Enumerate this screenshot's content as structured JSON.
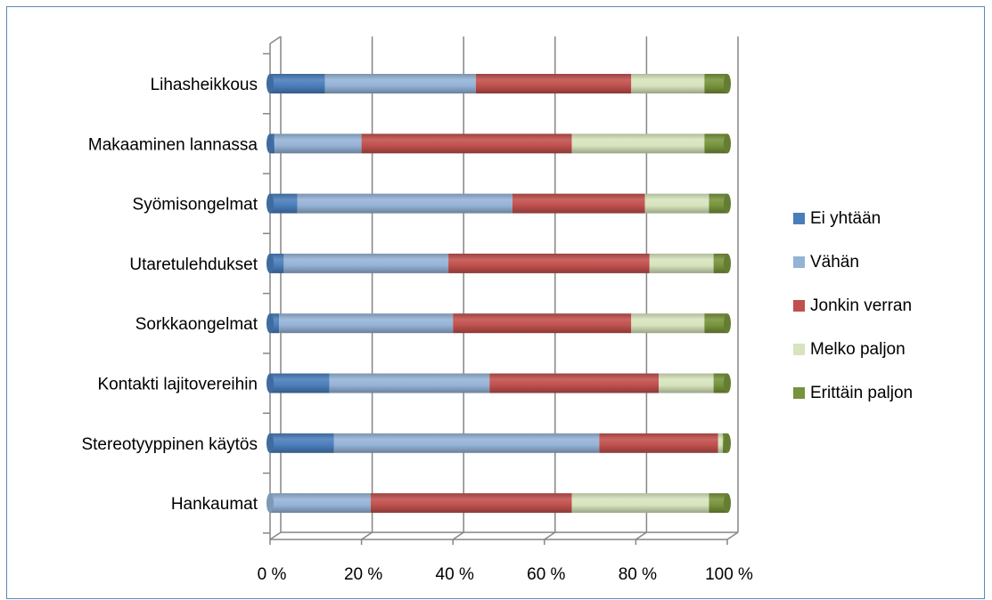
{
  "chart_data": {
    "type": "bar",
    "orientation": "horizontal",
    "stacked": "percent",
    "categories": [
      "Lihasheikkous",
      "Makaaminen lannassa",
      "Syömisongelmat",
      "Utaretulehdukset",
      "Sorkkaongelmat",
      "Kontakti lajitovereihin",
      "Stereotyyppinen käytös",
      "Hankaumat"
    ],
    "series": [
      {
        "name": "Ei yhtään",
        "color": "#4a7ebb",
        "values": [
          12,
          1,
          6,
          3,
          2,
          13,
          14,
          0
        ]
      },
      {
        "name": "Vähän",
        "color": "#95b3d7",
        "values": [
          33,
          19,
          47,
          36,
          38,
          35,
          58,
          22
        ]
      },
      {
        "name": "Jonkin verran",
        "color": "#c0504d",
        "values": [
          34,
          46,
          29,
          44,
          39,
          37,
          26,
          44
        ]
      },
      {
        "name": "Melko paljon",
        "color": "#d7e4bd",
        "values": [
          16,
          29,
          14,
          14,
          16,
          12,
          1,
          30
        ]
      },
      {
        "name": "Erittäin paljon",
        "color": "#77933c",
        "values": [
          5,
          5,
          4,
          3,
          5,
          3,
          1,
          4
        ]
      }
    ],
    "xticks": [
      "0 %",
      "20 %",
      "40 %",
      "60 %",
      "80 %",
      "100 %"
    ],
    "xlim": [
      0,
      100
    ],
    "grid": true,
    "legend_position": "right"
  }
}
